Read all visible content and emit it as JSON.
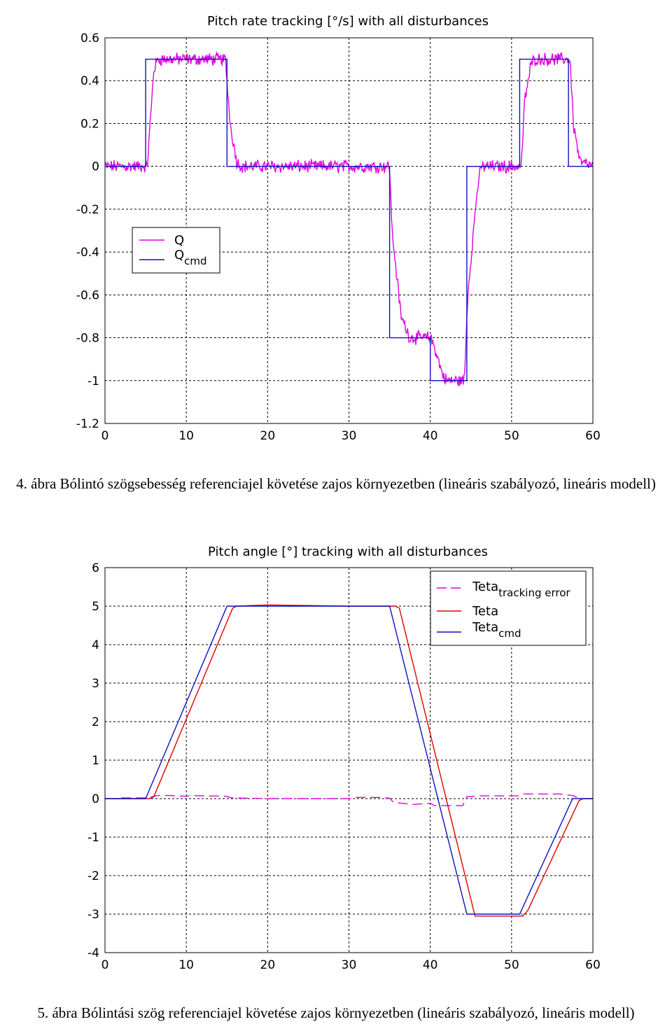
{
  "captions": {
    "fig4": "4. ábra Bólintó szögsebesség referenciajel követése zajos környezetben (lineáris szabályozó, lineáris modell)",
    "fig5": "5. ábra Bólintási szög referenciajel követése zajos környezetben (lineáris szabályozó, lineáris modell)"
  },
  "chart_data": [
    {
      "type": "line",
      "title": "Pitch rate tracking [°/s] with all disturbances",
      "xlim": [
        0,
        60
      ],
      "ylim": [
        -1.2,
        0.6
      ],
      "xticks": [
        0,
        10,
        20,
        30,
        40,
        50,
        60
      ],
      "yticks": [
        -1.2,
        -1,
        -0.8,
        -0.6,
        -0.4,
        -0.2,
        0,
        0.2,
        0.4,
        0.6
      ],
      "grid": true,
      "legend_position": "middle-left",
      "series": [
        {
          "name": "Q",
          "color": "#e000e0",
          "noisy": true,
          "x": [
            0,
            5.2,
            6,
            6.5,
            14.8,
            15.4,
            16.2,
            16.8,
            35,
            35.3,
            36.4,
            37.5,
            38,
            40,
            40.5,
            41.5,
            42,
            44.2,
            44.6,
            45.8,
            46.3,
            51.2,
            51.6,
            52.4,
            52.8,
            57.2,
            57.6,
            58.4,
            60
          ],
          "y": [
            0,
            0,
            0.45,
            0.5,
            0.5,
            0.2,
            0.02,
            0,
            0,
            -0.3,
            -0.7,
            -0.8,
            -0.8,
            -0.8,
            -0.84,
            -0.97,
            -1,
            -1,
            -0.6,
            -0.1,
            0,
            0,
            0.3,
            0.48,
            0.5,
            0.5,
            0.2,
            0.02,
            0
          ]
        },
        {
          "name": "Q_cmd",
          "color": "#1010c0",
          "noisy": false,
          "x": [
            0,
            5,
            5,
            15,
            15,
            35,
            35,
            40,
            40,
            44.5,
            44.5,
            51,
            51,
            57,
            57,
            60
          ],
          "y": [
            0,
            0,
            0.5,
            0.5,
            0,
            0,
            -0.8,
            -0.8,
            -1,
            -1,
            0,
            0,
            0.5,
            0.5,
            0,
            0
          ]
        }
      ]
    },
    {
      "type": "line",
      "title": "Pitch angle [°] tracking with all disturbances",
      "xlim": [
        0,
        60
      ],
      "ylim": [
        -4,
        6
      ],
      "xticks": [
        0,
        10,
        20,
        30,
        40,
        50,
        60
      ],
      "yticks": [
        -4,
        -3,
        -2,
        -1,
        0,
        1,
        2,
        3,
        4,
        5,
        6
      ],
      "grid": true,
      "legend_position": "top-right",
      "series": [
        {
          "name": "Teta_tracking error",
          "color": "#e000e0",
          "dashed": true,
          "x": [
            2,
            5.3,
            5.8,
            6.5,
            8,
            10,
            10.5,
            15,
            15.5,
            20,
            25,
            30,
            31,
            34,
            35,
            35.5,
            38,
            40,
            40.5,
            44,
            44.5,
            46,
            51,
            51.5,
            56,
            57.5,
            58.5
          ],
          "y": [
            0.02,
            0.02,
            0.05,
            0.08,
            0.08,
            0.06,
            0.08,
            0.06,
            0.02,
            0,
            0,
            0,
            0.03,
            0.03,
            0.01,
            -0.1,
            -0.15,
            -0.12,
            -0.18,
            -0.18,
            0.05,
            0.07,
            0.07,
            0.12,
            0.12,
            0.08,
            0
          ]
        },
        {
          "name": "Teta",
          "color": "#e00000",
          "x": [
            0,
            5.5,
            6,
            15.7,
            16.2,
            20,
            30,
            35.7,
            36.2,
            45.5,
            46,
            51.4,
            52,
            58.3,
            58.8,
            60
          ],
          "y": [
            0,
            0,
            0.05,
            4.95,
            5,
            5.03,
            5,
            5,
            4.95,
            -3.05,
            -3.05,
            -3.05,
            -2.9,
            -0.05,
            0,
            0
          ]
        },
        {
          "name": "Teta_cmd",
          "color": "#1010c0",
          "x": [
            0,
            5,
            15,
            35,
            44.5,
            51,
            57.5,
            60
          ],
          "y": [
            0,
            0,
            5,
            5,
            -3,
            -3,
            0,
            0
          ]
        }
      ]
    }
  ],
  "legend1": {
    "q_main": "Q",
    "qcmd_main": "Q",
    "qcmd_sub": "cmd"
  },
  "legend2": {
    "err_main": "Teta",
    "err_sub": "tracking error",
    "teta_main": "Teta",
    "cmd_main": "Teta",
    "cmd_sub": "cmd"
  }
}
